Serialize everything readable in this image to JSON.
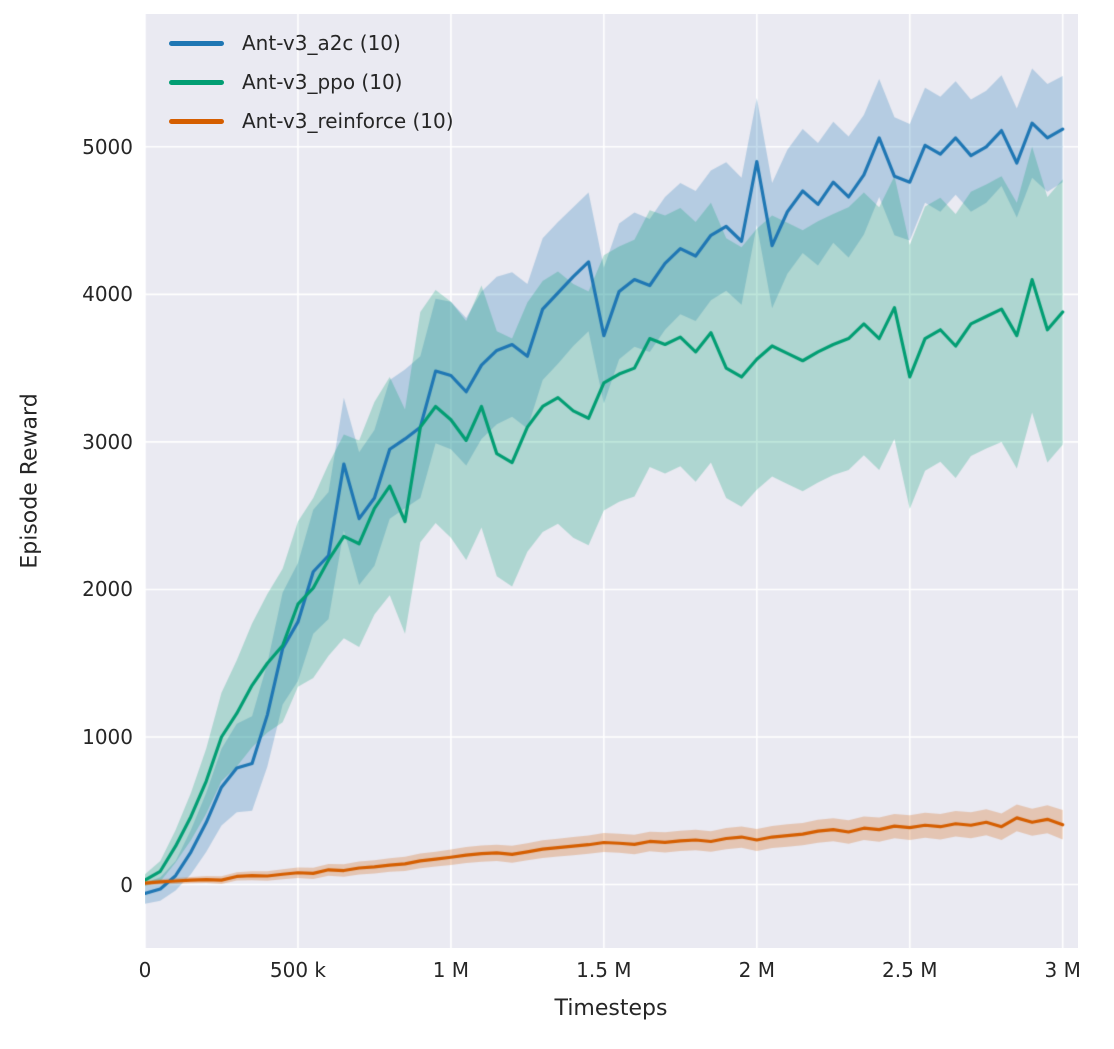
{
  "chart_data": {
    "type": "line",
    "title": "",
    "xlabel": "Timesteps",
    "ylabel": "Episode Reward",
    "xlim": [
      0,
      3050000
    ],
    "ylim": [
      -430,
      5900
    ],
    "grid": true,
    "legend_position": "upper left",
    "plot_background": "#eaeaf2",
    "grid_color": "#ffffff",
    "text_color": "#262626",
    "band_alpha": 0.26,
    "x_step": 50000,
    "x_ticks": [
      {
        "value": 0,
        "label": "0"
      },
      {
        "value": 500000,
        "label": "500 k"
      },
      {
        "value": 1000000,
        "label": "1 M"
      },
      {
        "value": 1500000,
        "label": "1.5 M"
      },
      {
        "value": 2000000,
        "label": "2 M"
      },
      {
        "value": 2500000,
        "label": "2.5 M"
      },
      {
        "value": 3000000,
        "label": "3 M"
      }
    ],
    "y_ticks": [
      {
        "value": 0,
        "label": "0"
      },
      {
        "value": 1000,
        "label": "1000"
      },
      {
        "value": 2000,
        "label": "2000"
      },
      {
        "value": 3000,
        "label": "3000"
      },
      {
        "value": 4000,
        "label": "4000"
      },
      {
        "value": 5000,
        "label": "5000"
      }
    ],
    "series": [
      {
        "name": "Ant-v3_a2c (10)",
        "color": "#1f77b4",
        "values": [
          -60,
          -30,
          60,
          220,
          420,
          660,
          790,
          820,
          1150,
          1600,
          1780,
          2120,
          2230,
          2850,
          2480,
          2620,
          2950,
          3020,
          3100,
          3480,
          3450,
          3340,
          3520,
          3620,
          3660,
          3580,
          3900,
          4010,
          4120,
          4220,
          3720,
          4020,
          4100,
          4060,
          4210,
          4310,
          4260,
          4400,
          4460,
          4360,
          4900,
          4330,
          4560,
          4700,
          4610,
          4760,
          4660,
          4810,
          5060,
          4800,
          4760,
          5010,
          4950,
          5060,
          4940,
          5000,
          5110,
          4890,
          5160,
          5060,
          5120
        ],
        "band": [
          70,
          80,
          100,
          150,
          200,
          260,
          300,
          320,
          350,
          380,
          400,
          420,
          430,
          450,
          450,
          460,
          470,
          470,
          480,
          490,
          500,
          500,
          500,
          500,
          490,
          490,
          480,
          480,
          470,
          470,
          460,
          460,
          455,
          450,
          450,
          445,
          440,
          440,
          435,
          430,
          430,
          425,
          420,
          420,
          415,
          410,
          410,
          405,
          400,
          400,
          395,
          390,
          390,
          385,
          380,
          380,
          375,
          370,
          370,
          365,
          360
        ]
      },
      {
        "name": "Ant-v3_ppo (10)",
        "color": "#029e73",
        "values": [
          30,
          90,
          260,
          460,
          700,
          1000,
          1160,
          1350,
          1500,
          1620,
          1900,
          2010,
          2200,
          2360,
          2310,
          2550,
          2700,
          2460,
          3100,
          3240,
          3150,
          3010,
          3240,
          2920,
          2860,
          3100,
          3240,
          3300,
          3210,
          3160,
          3400,
          3460,
          3500,
          3700,
          3660,
          3710,
          3610,
          3740,
          3500,
          3440,
          3560,
          3650,
          3600,
          3550,
          3610,
          3660,
          3700,
          3800,
          3700,
          3910,
          3440,
          3700,
          3760,
          3650,
          3800,
          3850,
          3900,
          3720,
          4100,
          3760,
          3880
        ],
        "band": [
          40,
          70,
          110,
          160,
          220,
          300,
          360,
          420,
          470,
          520,
          560,
          610,
          650,
          690,
          700,
          720,
          740,
          760,
          780,
          790,
          800,
          810,
          820,
          830,
          840,
          845,
          850,
          855,
          860,
          860,
          865,
          865,
          870,
          870,
          875,
          875,
          880,
          880,
          880,
          880,
          885,
          885,
          885,
          885,
          885,
          885,
          890,
          890,
          890,
          890,
          895,
          895,
          895,
          895,
          895,
          895,
          900,
          900,
          900,
          900,
          900
        ]
      },
      {
        "name": "Ant-v3_reinforce (10)",
        "color": "#d55e00",
        "values": [
          10,
          18,
          24,
          30,
          34,
          30,
          55,
          60,
          58,
          70,
          80,
          76,
          100,
          95,
          112,
          120,
          132,
          140,
          160,
          172,
          185,
          200,
          210,
          215,
          205,
          222,
          240,
          250,
          260,
          270,
          285,
          280,
          272,
          292,
          286,
          296,
          302,
          292,
          312,
          322,
          302,
          322,
          332,
          342,
          362,
          372,
          356,
          382,
          372,
          396,
          386,
          402,
          392,
          412,
          402,
          422,
          392,
          452,
          422,
          442,
          405
        ],
        "band": [
          15,
          18,
          20,
          22,
          24,
          26,
          28,
          30,
          32,
          34,
          35,
          38,
          40,
          42,
          44,
          45,
          46,
          48,
          50,
          50,
          52,
          54,
          55,
          55,
          58,
          58,
          60,
          60,
          62,
          62,
          64,
          64,
          66,
          66,
          68,
          68,
          70,
          70,
          72,
          72,
          74,
          74,
          76,
          76,
          78,
          78,
          80,
          80,
          82,
          82,
          84,
          84,
          86,
          86,
          88,
          88,
          90,
          90,
          92,
          95,
          100
        ]
      }
    ]
  }
}
